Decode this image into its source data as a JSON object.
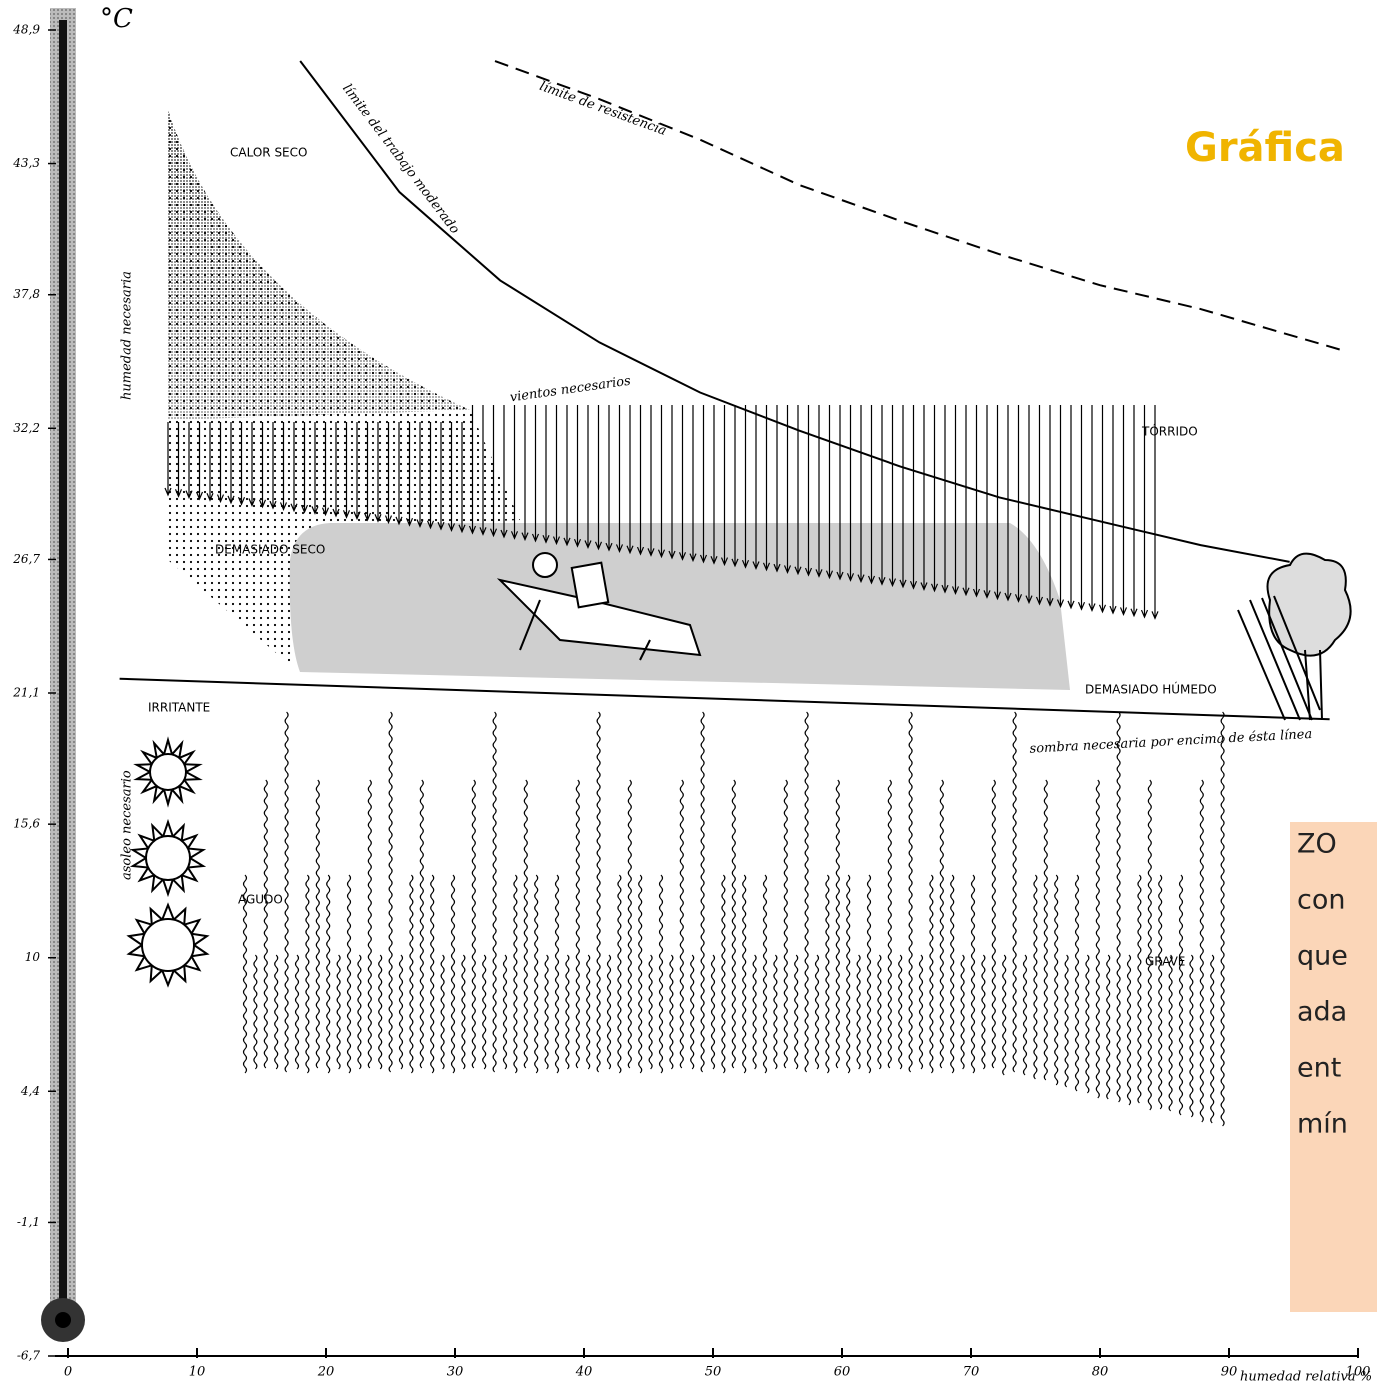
{
  "title": "Gráfica",
  "note": {
    "lines": [
      "ZO",
      "con",
      "que",
      "ada",
      "ent",
      "mín"
    ]
  },
  "chart_data": {
    "type": "line",
    "y_unit": "°C",
    "xlabel": "humedad relativa %",
    "xlim": [
      0,
      100
    ],
    "ylim": [
      -6.7,
      48.9
    ],
    "xticks": [
      0,
      10,
      20,
      30,
      40,
      50,
      60,
      70,
      80,
      90,
      100
    ],
    "yticks": [
      {
        "value": 48.9,
        "label": "48,9"
      },
      {
        "value": 43.3,
        "label": "43,3"
      },
      {
        "value": 37.8,
        "label": "37,8"
      },
      {
        "value": 32.2,
        "label": "32,2"
      },
      {
        "value": 26.7,
        "label": "26,7"
      },
      {
        "value": 21.1,
        "label": "21,1"
      },
      {
        "value": 15.6,
        "label": "15,6"
      },
      {
        "value": 10,
        "label": "10"
      },
      {
        "value": 4.4,
        "label": "4,4"
      },
      {
        "value": -1.1,
        "label": "-1,1"
      },
      {
        "value": -6.7,
        "label": "-6,7"
      }
    ],
    "series": [
      {
        "name": "límite del trabajo moderado",
        "color": "#000000",
        "style": "solid",
        "x": [
          18.0,
          25.7,
          33.5,
          41.2,
          49.0,
          56.7,
          64.5,
          72.2,
          80.0,
          87.8,
          94.7
        ],
        "values": [
          47.6,
          42.1,
          38.4,
          35.8,
          33.7,
          32.1,
          30.6,
          29.3,
          28.3,
          27.3,
          26.6
        ]
      },
      {
        "name": "límite de resistencia",
        "color": "#000000",
        "style": "dashed",
        "x": [
          33.1,
          41.2,
          49.0,
          56.7,
          64.5,
          72.2,
          80.0,
          87.8,
          98.6
        ],
        "values": [
          47.6,
          46.0,
          44.3,
          42.4,
          40.9,
          39.5,
          38.2,
          37.2,
          35.5
        ]
      },
      {
        "name": "sombra necesaria por encima de ésta línea",
        "color": "#000000",
        "style": "solid",
        "x": [
          4.0,
          97.8
        ],
        "values": [
          21.7,
          20.0
        ]
      }
    ],
    "annotations": [
      "CALOR SECO",
      "TÓRRIDO",
      "DEMASIADO SECO",
      "DEMASIADO HÚMEDO",
      "vientos necesarios",
      "humedad necesaria",
      "IRRITANTE",
      "asoleo necesario",
      "AGUDO",
      "GRAVE"
    ]
  }
}
